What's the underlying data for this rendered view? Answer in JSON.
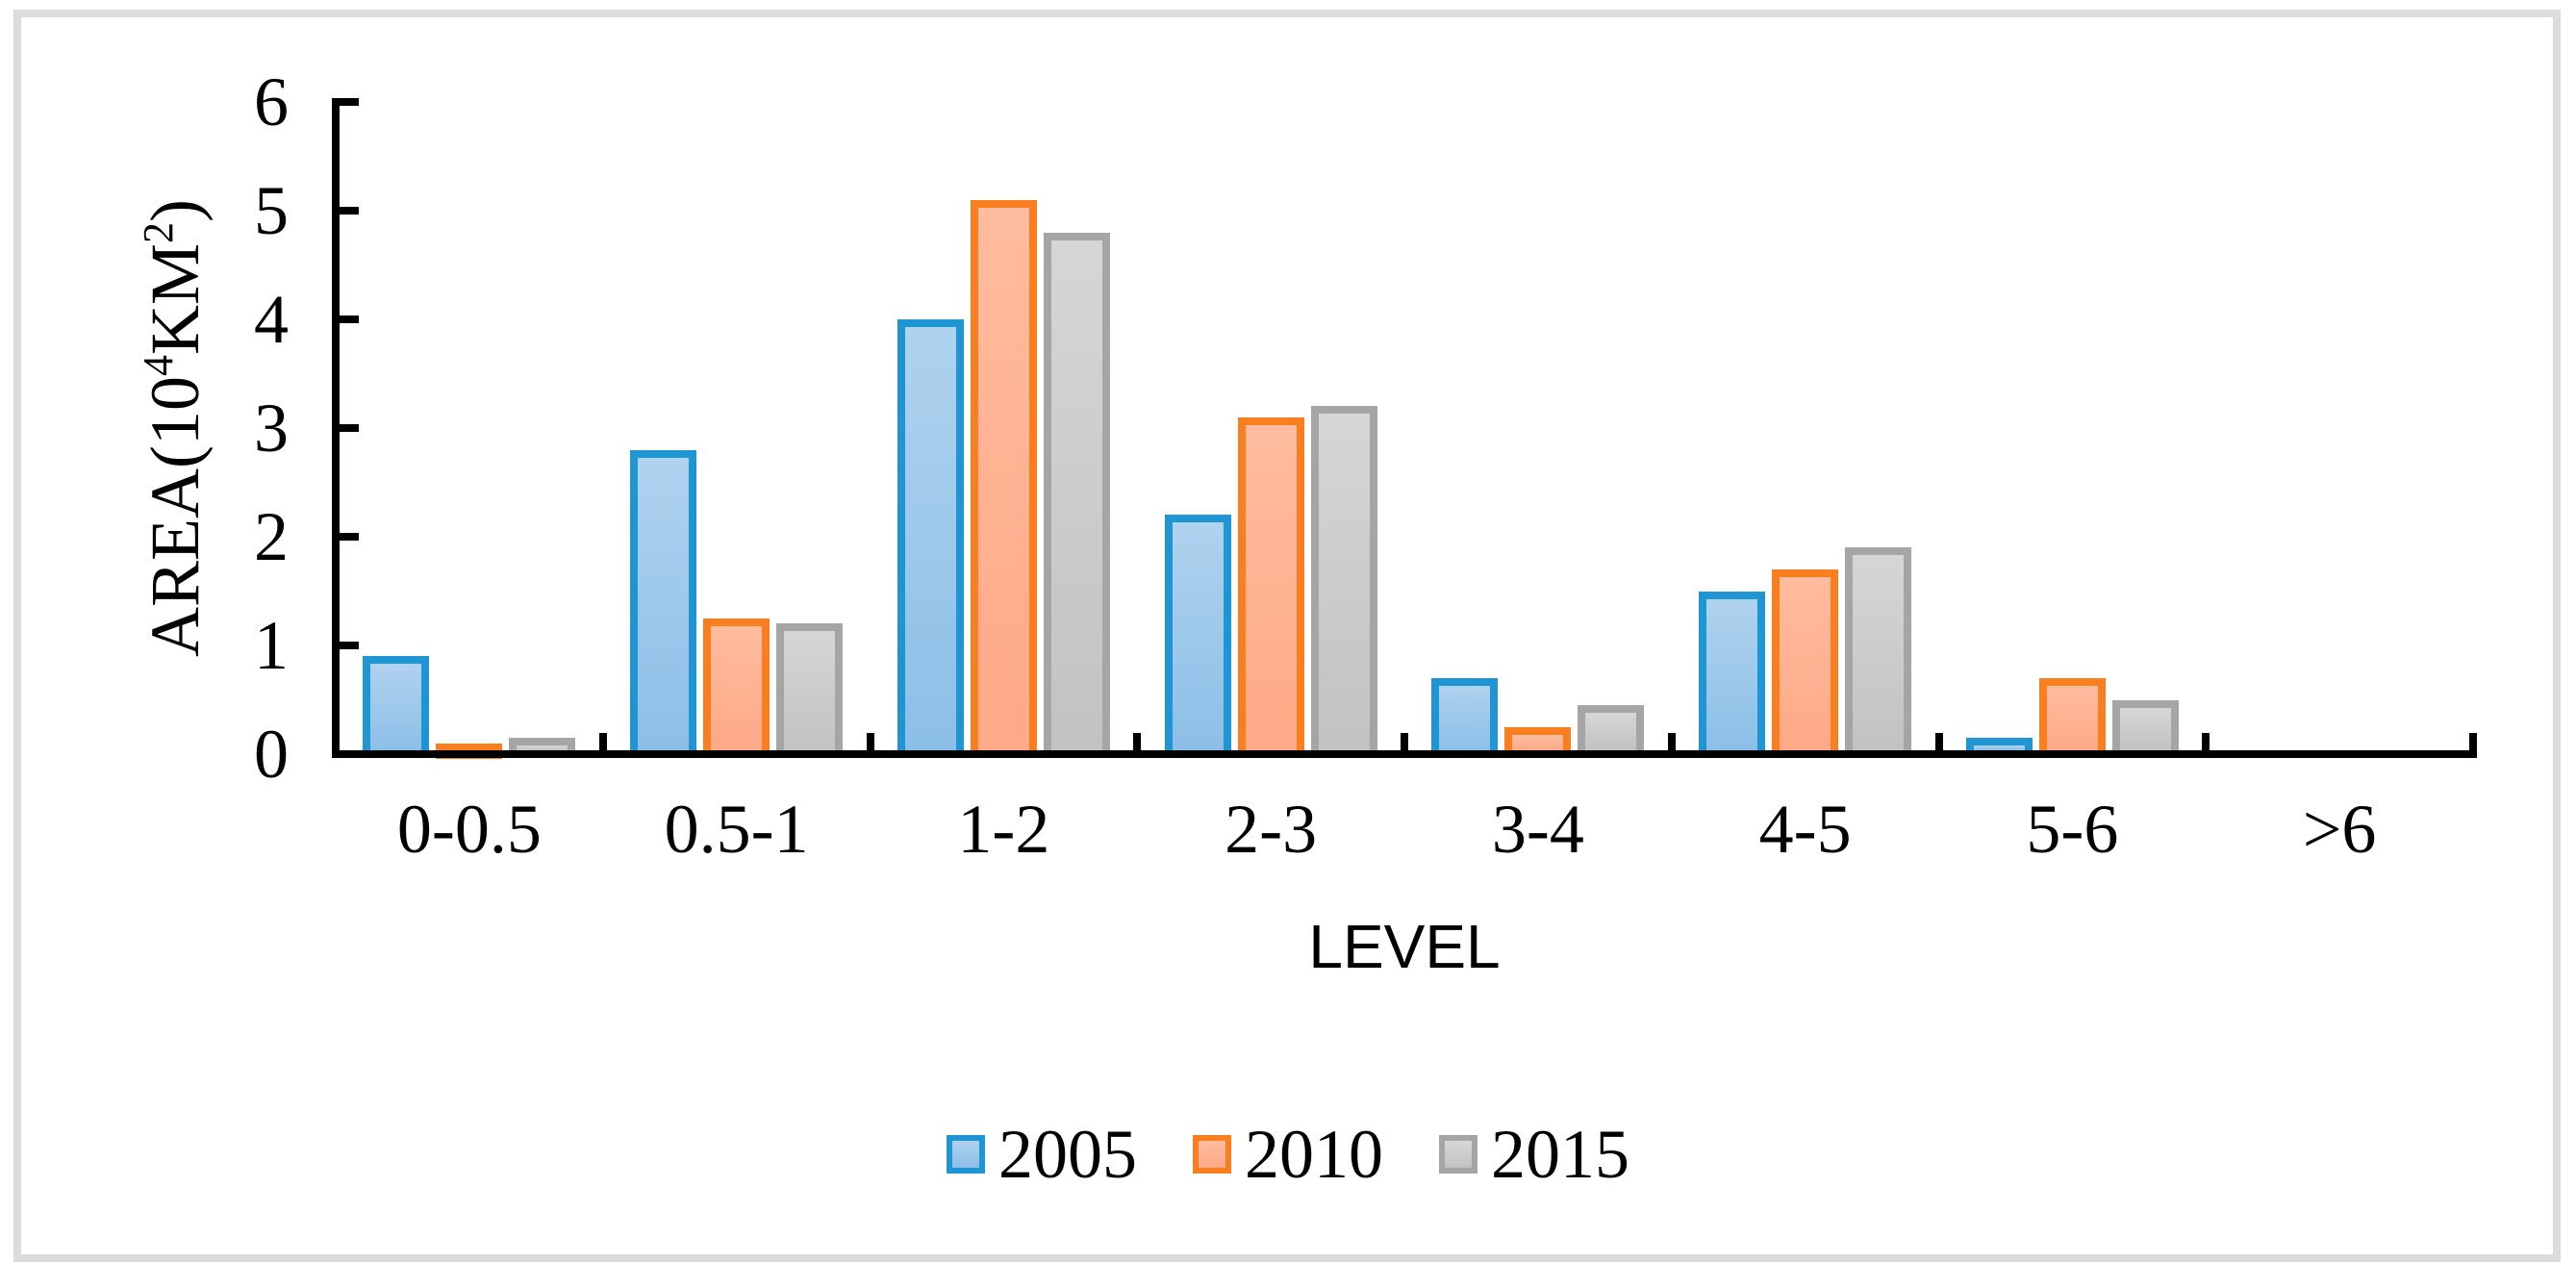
{
  "figure": {
    "background": "#ffffff",
    "frame_color": "#dcdcdc",
    "axis_color": "#000000",
    "text_color": "#000000"
  },
  "chart_data": {
    "type": "bar",
    "title": "",
    "xlabel": "LEVEL",
    "ylabel": "AREA(10⁴KM²)",
    "ylabel_parts": {
      "prefix": "AREA(10",
      "sup1": "4",
      "mid": "KM",
      "sup2": "2",
      "suffix": ")"
    },
    "categories": [
      "0-0.5",
      "0.5-1",
      "1-2",
      "2-3",
      "3-4",
      "4-5",
      "5-6",
      ">6"
    ],
    "y_ticks": [
      "0",
      "1",
      "2",
      "3",
      "4",
      "5",
      "6"
    ],
    "ylim": [
      0,
      6
    ],
    "grid": false,
    "tick_style": "inside",
    "legend_position": "bottom",
    "series": [
      {
        "name": "2005",
        "values": [
          0.9,
          2.8,
          4.0,
          2.2,
          0.7,
          1.5,
          0.15,
          0
        ],
        "border_color": "#1f96d3",
        "fill_top": "#afd2ee",
        "fill_bottom": "#8cbfe7"
      },
      {
        "name": "2010",
        "values": [
          0.1,
          1.25,
          5.1,
          3.1,
          0.25,
          1.7,
          0.7,
          0
        ],
        "border_color": "#f87e1f",
        "fill_top": "#ffbc9e",
        "fill_bottom": "#fea987"
      },
      {
        "name": "2015",
        "values": [
          0.15,
          1.2,
          4.8,
          3.2,
          0.45,
          1.9,
          0.5,
          0
        ],
        "border_color": "#a5a5a5",
        "fill_top": "#d6d6d6",
        "fill_bottom": "#c2c2c2"
      }
    ]
  }
}
